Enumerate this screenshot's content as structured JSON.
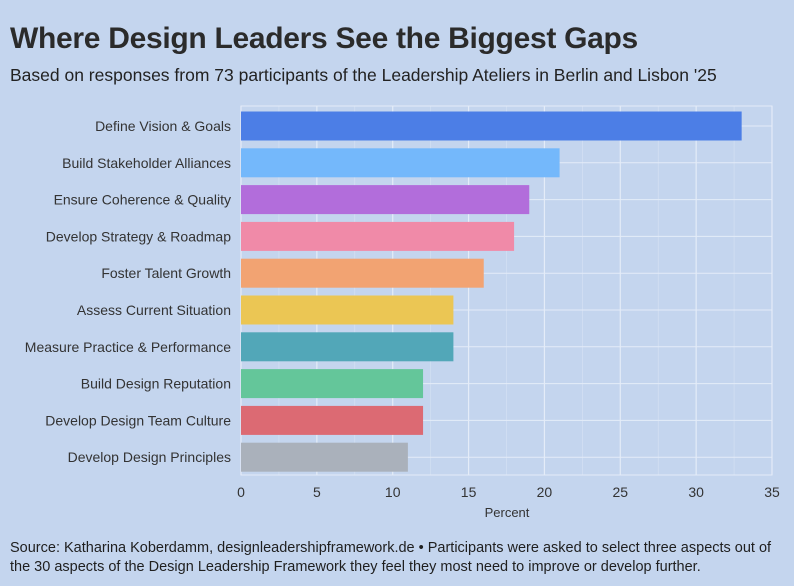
{
  "title": "Where Design Leaders See the Biggest Gaps",
  "subtitle": "Based on responses from 73 participants of the Leadership Ateliers in Berlin and Lisbon '25",
  "footer": "Source: Katharina Koberdamm, designleadershipframework.de • Participants were asked to select three aspects out of the 30 aspects of the Design Leadership Framework they feel they most need to improve or develop further.",
  "colors": {
    "background": "#c4d5ee",
    "grid": "#e4ecf8"
  },
  "chart_data": {
    "type": "bar",
    "orientation": "horizontal",
    "title": "Where Design Leaders See the Biggest Gaps",
    "xlabel": "Percent",
    "ylabel": "",
    "xlim": [
      0,
      35
    ],
    "xticks": [
      0,
      5,
      10,
      15,
      20,
      25,
      30,
      35
    ],
    "grid": true,
    "categories": [
      "Define Vision & Goals",
      "Build Stakeholder Alliances",
      "Ensure Coherence & Quality",
      "Develop Strategy & Roadmap",
      "Foster Talent Growth",
      "Assess Current Situation",
      "Measure Practice & Performance",
      "Build Design Reputation",
      "Develop Design Team Culture",
      "Develop Design Principles"
    ],
    "values": [
      33,
      21,
      19,
      18,
      16,
      14,
      14,
      12,
      12,
      11
    ],
    "bar_colors": [
      "#4c7ee6",
      "#74b8fb",
      "#b26ddb",
      "#f08aa8",
      "#f2a372",
      "#ebc654",
      "#52a7b8",
      "#64c69a",
      "#dc6a73",
      "#aab1bb"
    ]
  }
}
